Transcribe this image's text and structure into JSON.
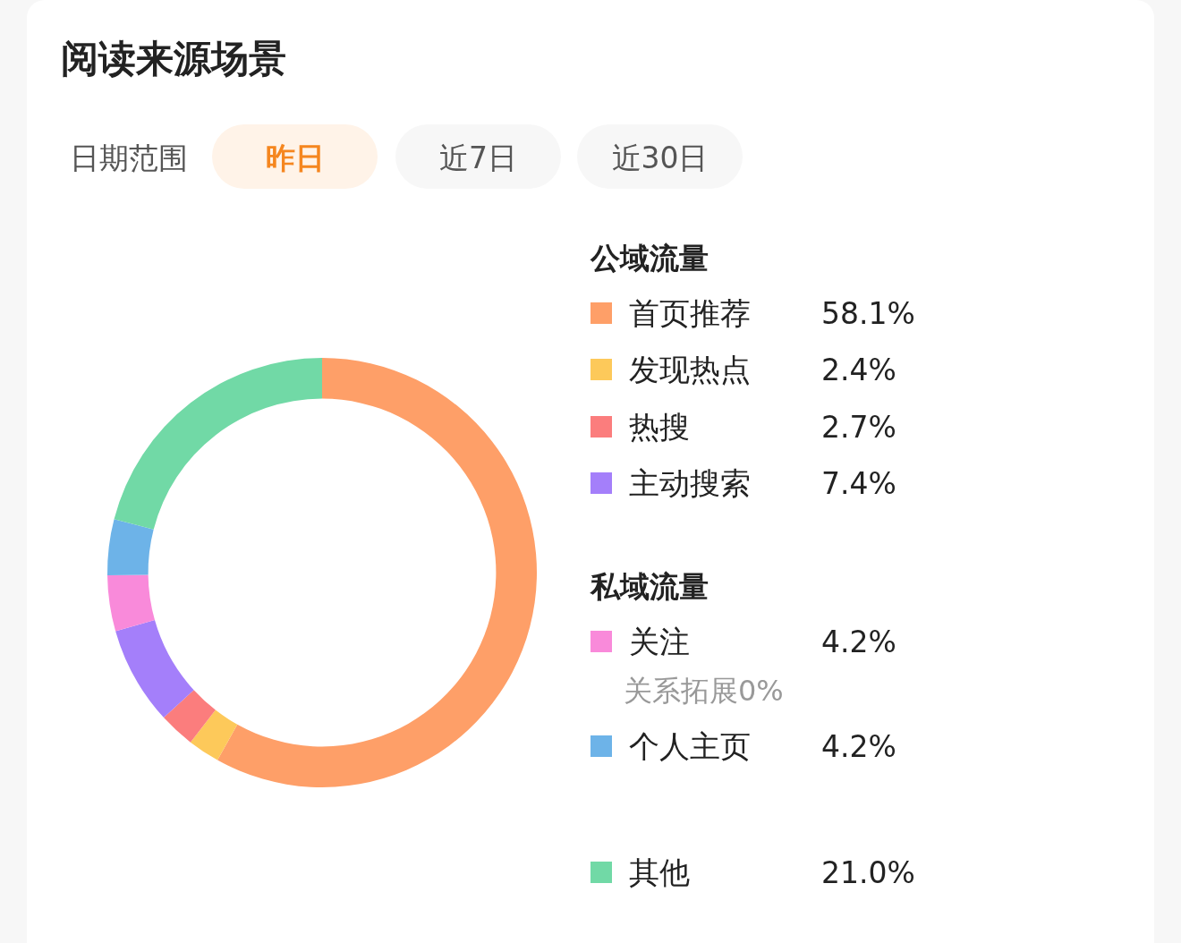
{
  "chart_data": {
    "type": "donut",
    "title": "阅读来源场景",
    "categories": [
      "首页推荐",
      "发现热点",
      "热搜",
      "主动搜索",
      "关注",
      "个人主页",
      "其他"
    ],
    "values": [
      58.1,
      2.4,
      2.7,
      7.4,
      4.2,
      4.2,
      21.0
    ],
    "value_labels": [
      "58.1%",
      "2.4%",
      "2.7%",
      "7.4%",
      "4.2%",
      "4.2%",
      "21.0%"
    ],
    "colors": [
      "#fe9f68",
      "#fdc95a",
      "#fb7d7d",
      "#a47ffa",
      "#f98ada",
      "#6db3e8",
      "#71d9a6"
    ],
    "legend": "right",
    "annotations": [
      "日期范围",
      "昨日",
      "近7日",
      "近30日",
      "公域流量",
      "私域流量",
      "关系拓展0%"
    ]
  }
}
